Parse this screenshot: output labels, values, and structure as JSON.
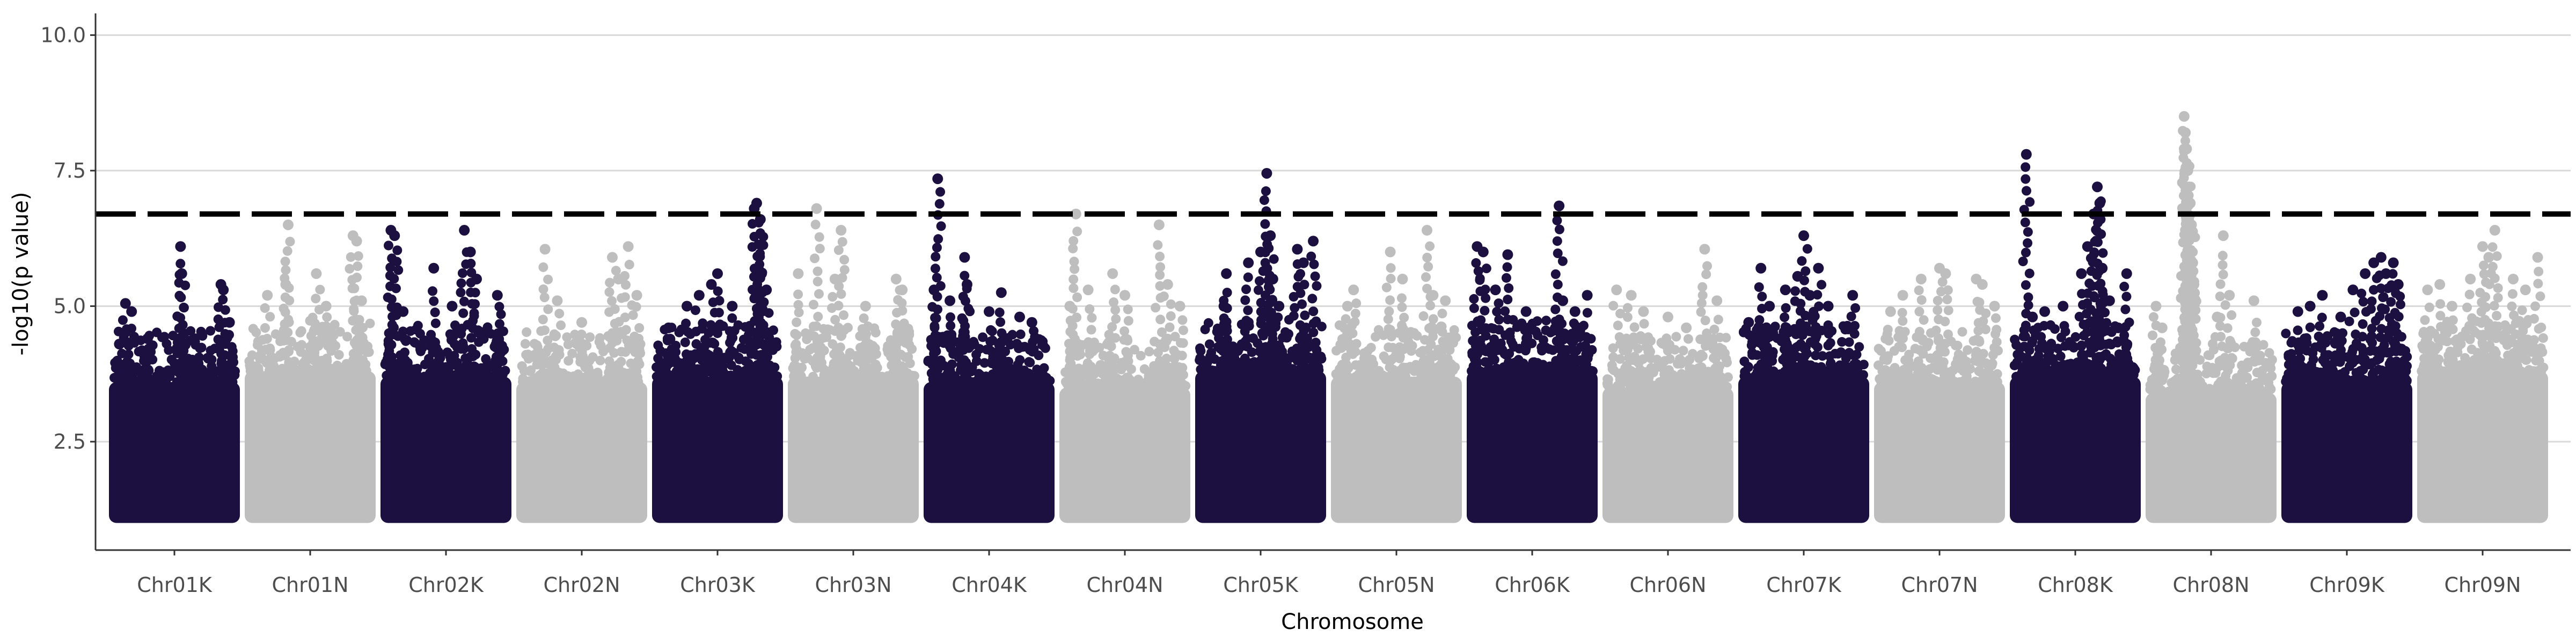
{
  "chart_data": {
    "type": "scatter",
    "title": "",
    "xlabel": "Chromosome",
    "ylabel": "-log10(p value)",
    "ylim": [
      0.5,
      10.4
    ],
    "y_ticks": [
      2.5,
      5.0,
      7.5,
      10.0
    ],
    "y_tick_labels": [
      "2.5",
      "5.0",
      "7.5",
      "10.0"
    ],
    "grid": true,
    "legend": "none",
    "threshold": 6.7,
    "colors": {
      "odd": "#1c1040",
      "even": "#bebebe",
      "threshold": "#000000",
      "grid": "#d9d9d9"
    },
    "categories": [
      "Chr01K",
      "Chr01N",
      "Chr02K",
      "Chr02N",
      "Chr03K",
      "Chr03N",
      "Chr04K",
      "Chr04N",
      "Chr05K",
      "Chr05N",
      "Chr06K",
      "Chr06N",
      "Chr07K",
      "Chr07N",
      "Chr08K",
      "Chr08N",
      "Chr09K",
      "Chr09N"
    ],
    "series": [
      {
        "category": "Chr01K",
        "dense_top": 3.6,
        "peaks": [
          [
            0.05,
            4.3
          ],
          [
            0.1,
            5.05
          ],
          [
            0.15,
            4.9
          ],
          [
            0.28,
            4.4
          ],
          [
            0.3,
            4.2
          ],
          [
            0.55,
            6.1
          ],
          [
            0.56,
            5.6
          ],
          [
            0.62,
            4.0
          ],
          [
            0.88,
            5.4
          ],
          [
            0.9,
            5.3
          ],
          [
            0.95,
            4.7
          ]
        ]
      },
      {
        "category": "Chr01N",
        "dense_top": 3.8,
        "peaks": [
          [
            0.15,
            5.2
          ],
          [
            0.3,
            5.4
          ],
          [
            0.32,
            6.5
          ],
          [
            0.55,
            5.6
          ],
          [
            0.63,
            5.0
          ],
          [
            0.85,
            6.3
          ],
          [
            0.88,
            6.2
          ],
          [
            0.92,
            5.1
          ]
        ]
      },
      {
        "category": "Chr02K",
        "dense_top": 3.7,
        "peaks": [
          [
            0.05,
            6.4
          ],
          [
            0.08,
            6.3
          ],
          [
            0.15,
            4.9
          ],
          [
            0.4,
            5.7
          ],
          [
            0.55,
            5.0
          ],
          [
            0.65,
            6.4
          ],
          [
            0.7,
            6.0
          ],
          [
            0.75,
            5.5
          ],
          [
            0.92,
            5.2
          ]
        ]
      },
      {
        "category": "Chr02N",
        "dense_top": 3.6,
        "peaks": [
          [
            0.2,
            6.05
          ],
          [
            0.3,
            5.1
          ],
          [
            0.5,
            4.7
          ],
          [
            0.75,
            5.9
          ],
          [
            0.8,
            5.5
          ],
          [
            0.88,
            6.1
          ],
          [
            0.95,
            5.2
          ]
        ]
      },
      {
        "category": "Chr03K",
        "dense_top": 3.7,
        "peaks": [
          [
            0.1,
            4.6
          ],
          [
            0.25,
            5.0
          ],
          [
            0.35,
            5.2
          ],
          [
            0.45,
            5.4
          ],
          [
            0.5,
            5.6
          ],
          [
            0.62,
            5.0
          ],
          [
            0.8,
            6.8
          ],
          [
            0.82,
            6.9
          ],
          [
            0.85,
            6.6
          ],
          [
            0.86,
            5.6
          ],
          [
            0.9,
            5.3
          ]
        ]
      },
      {
        "category": "Chr03N",
        "dense_top": 3.7,
        "peaks": [
          [
            0.05,
            5.6
          ],
          [
            0.2,
            6.8
          ],
          [
            0.35,
            5.5
          ],
          [
            0.4,
            6.4
          ],
          [
            0.6,
            5.0
          ],
          [
            0.85,
            5.5
          ],
          [
            0.9,
            5.3
          ]
        ]
      },
      {
        "category": "Chr04K",
        "dense_top": 3.6,
        "peaks": [
          [
            0.05,
            5.3
          ],
          [
            0.08,
            7.35
          ],
          [
            0.18,
            5.1
          ],
          [
            0.3,
            5.9
          ],
          [
            0.32,
            5.4
          ],
          [
            0.5,
            4.9
          ],
          [
            0.6,
            5.25
          ],
          [
            0.75,
            4.8
          ],
          [
            0.85,
            4.7
          ]
        ]
      },
      {
        "category": "Chr04N",
        "dense_top": 3.5,
        "peaks": [
          [
            0.05,
            5.0
          ],
          [
            0.1,
            6.7
          ],
          [
            0.2,
            5.3
          ],
          [
            0.4,
            5.6
          ],
          [
            0.5,
            5.2
          ],
          [
            0.78,
            6.5
          ],
          [
            0.85,
            5.4
          ],
          [
            0.95,
            5.0
          ]
        ]
      },
      {
        "category": "Chr05K",
        "dense_top": 3.8,
        "peaks": [
          [
            0.2,
            5.0
          ],
          [
            0.22,
            5.6
          ],
          [
            0.4,
            5.8
          ],
          [
            0.5,
            6.0
          ],
          [
            0.55,
            7.45
          ],
          [
            0.58,
            6.3
          ],
          [
            0.6,
            5.5
          ],
          [
            0.65,
            5.0
          ],
          [
            0.8,
            6.05
          ],
          [
            0.85,
            5.8
          ],
          [
            0.93,
            6.2
          ]
        ]
      },
      {
        "category": "Chr05N",
        "dense_top": 3.7,
        "peaks": [
          [
            0.1,
            5.0
          ],
          [
            0.15,
            5.3
          ],
          [
            0.45,
            6.0
          ],
          [
            0.55,
            5.5
          ],
          [
            0.75,
            6.4
          ],
          [
            0.8,
            5.2
          ],
          [
            0.9,
            5.1
          ]
        ]
      },
      {
        "category": "Chr06K",
        "dense_top": 3.8,
        "peaks": [
          [
            0.05,
            6.1
          ],
          [
            0.1,
            6.0
          ],
          [
            0.2,
            5.3
          ],
          [
            0.3,
            5.95
          ],
          [
            0.45,
            4.9
          ],
          [
            0.72,
            6.85
          ],
          [
            0.75,
            5.1
          ],
          [
            0.85,
            4.9
          ],
          [
            0.95,
            5.2
          ]
        ]
      },
      {
        "category": "Chr06N",
        "dense_top": 3.5,
        "peaks": [
          [
            0.08,
            5.3
          ],
          [
            0.2,
            5.2
          ],
          [
            0.3,
            4.9
          ],
          [
            0.5,
            4.8
          ],
          [
            0.65,
            4.6
          ],
          [
            0.8,
            6.05
          ],
          [
            0.9,
            5.1
          ]
        ]
      },
      {
        "category": "Chr07K",
        "dense_top": 3.7,
        "peaks": [
          [
            0.05,
            4.7
          ],
          [
            0.15,
            5.7
          ],
          [
            0.22,
            5.0
          ],
          [
            0.35,
            5.3
          ],
          [
            0.45,
            5.55
          ],
          [
            0.5,
            6.3
          ],
          [
            0.55,
            5.2
          ],
          [
            0.62,
            5.7
          ],
          [
            0.7,
            5.0
          ],
          [
            0.9,
            5.2
          ]
        ]
      },
      {
        "category": "Chr07N",
        "dense_top": 3.6,
        "peaks": [
          [
            0.1,
            4.9
          ],
          [
            0.2,
            5.2
          ],
          [
            0.35,
            5.5
          ],
          [
            0.5,
            5.7
          ],
          [
            0.55,
            5.6
          ],
          [
            0.8,
            5.5
          ],
          [
            0.85,
            5.4
          ],
          [
            0.95,
            5.0
          ]
        ]
      },
      {
        "category": "Chr08K",
        "dense_top": 3.7,
        "peaks": [
          [
            0.1,
            7.8
          ],
          [
            0.15,
            4.8
          ],
          [
            0.25,
            4.9
          ],
          [
            0.4,
            5.0
          ],
          [
            0.55,
            5.6
          ],
          [
            0.6,
            6.1
          ],
          [
            0.65,
            6.7
          ],
          [
            0.68,
            7.2
          ],
          [
            0.7,
            6.9
          ],
          [
            0.72,
            5.7
          ],
          [
            0.78,
            5.1
          ],
          [
            0.85,
            4.6
          ],
          [
            0.92,
            5.6
          ]
        ]
      },
      {
        "category": "Chr08N",
        "dense_top": 3.4,
        "peaks": [
          [
            0.05,
            5.0
          ],
          [
            0.1,
            4.6
          ],
          [
            0.28,
            8.5
          ],
          [
            0.29,
            8.2
          ],
          [
            0.3,
            7.9
          ],
          [
            0.31,
            7.5
          ],
          [
            0.32,
            7.2
          ],
          [
            0.33,
            6.9
          ],
          [
            0.34,
            6.5
          ],
          [
            0.35,
            5.8
          ],
          [
            0.36,
            5.4
          ],
          [
            0.55,
            4.8
          ],
          [
            0.6,
            6.3
          ],
          [
            0.65,
            5.2
          ],
          [
            0.85,
            5.1
          ]
        ]
      },
      {
        "category": "Chr09K",
        "dense_top": 3.6,
        "peaks": [
          [
            0.1,
            4.9
          ],
          [
            0.2,
            5.0
          ],
          [
            0.3,
            5.2
          ],
          [
            0.45,
            4.8
          ],
          [
            0.55,
            5.3
          ],
          [
            0.65,
            5.6
          ],
          [
            0.72,
            5.8
          ],
          [
            0.78,
            5.9
          ],
          [
            0.82,
            5.6
          ],
          [
            0.88,
            5.8
          ],
          [
            0.92,
            5.4
          ]
        ]
      },
      {
        "category": "Chr09N",
        "dense_top": 3.8,
        "peaks": [
          [
            0.05,
            5.3
          ],
          [
            0.15,
            5.4
          ],
          [
            0.25,
            5.0
          ],
          [
            0.4,
            5.5
          ],
          [
            0.5,
            6.1
          ],
          [
            0.55,
            5.9
          ],
          [
            0.6,
            6.4
          ],
          [
            0.75,
            5.5
          ],
          [
            0.85,
            5.3
          ],
          [
            0.95,
            5.9
          ]
        ]
      }
    ]
  }
}
